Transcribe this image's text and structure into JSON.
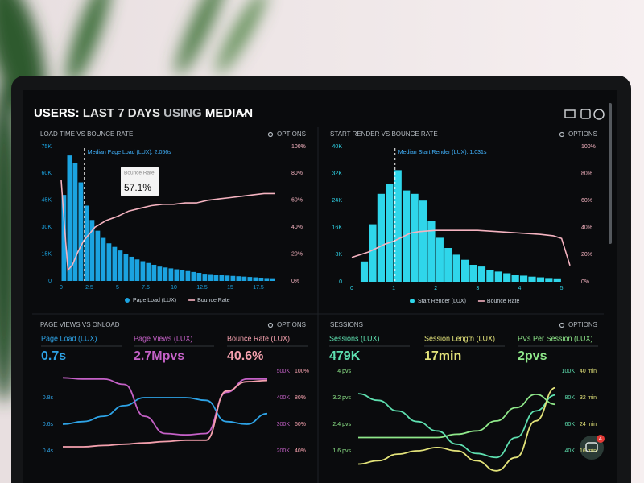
{
  "header": {
    "title": [
      "USERS:",
      "LAST 7 DAYS",
      "USING",
      "MEDIAN"
    ]
  },
  "panels": [
    {
      "title": "LOAD TIME VS BOUNCE RATE",
      "options": "OPTIONS",
      "annotation": {
        "value": 2.056,
        "label": "Median Page Load (LUX): 2.056s"
      },
      "tooltip": {
        "label": "Bounce Rate",
        "value": "57.1%"
      },
      "chart": {
        "type": "histogram_line",
        "xlim": [
          0,
          19.5
        ],
        "xticks": [
          0,
          2.5,
          5,
          7.5,
          10,
          12.5,
          15,
          17.5
        ],
        "ylim": [
          0,
          75000
        ],
        "yticks": [
          {
            "value": 0,
            "label": "0"
          },
          {
            "value": 15000,
            "label": "15K"
          },
          {
            "value": 30000,
            "label": "30K"
          },
          {
            "value": 45000,
            "label": "45K"
          },
          {
            "value": 60000,
            "label": "60K"
          },
          {
            "value": 75000,
            "label": "75K"
          }
        ],
        "y2lim": [
          0,
          100
        ],
        "y2ticks": [
          {
            "value": 0,
            "label": "0%"
          },
          {
            "value": 20,
            "label": "20%"
          },
          {
            "value": 40,
            "label": "40%"
          },
          {
            "value": 60,
            "label": "60%"
          },
          {
            "value": 80,
            "label": "80%"
          },
          {
            "value": 100,
            "label": "100%"
          }
        ],
        "bars": {
          "name": "Page Load (LUX)",
          "color": "#1ba3e0",
          "bins": [
            0,
            0.5,
            1,
            1.5,
            2,
            2.5,
            3,
            3.5,
            4,
            4.5,
            5,
            5.5,
            6,
            6.5,
            7,
            7.5,
            8,
            8.5,
            9,
            9.5,
            10,
            10.5,
            11,
            11.5,
            12,
            12.5,
            13,
            13.5,
            14,
            14.5,
            15,
            15.5,
            16,
            16.5,
            17,
            17.5,
            18,
            18.5,
            19
          ],
          "values": [
            48000,
            70000,
            66000,
            55000,
            42000,
            34000,
            28000,
            24000,
            21000,
            19000,
            17000,
            15000,
            13500,
            12000,
            11000,
            10000,
            9000,
            8000,
            7500,
            7000,
            6500,
            6000,
            5500,
            5000,
            4500,
            4000,
            3800,
            3500,
            3200,
            3000,
            2800,
            2600,
            2400,
            2200,
            2000,
            1800,
            1600,
            1500
          ]
        },
        "series": [
          {
            "name": "Bounce Rate",
            "color": "#f5b3c0",
            "axis": "y2",
            "x": [
              0,
              0.3,
              0.6,
              1,
              1.5,
              2,
              2.5,
              3,
              4,
              5,
              6,
              7,
              7.5,
              8,
              9,
              10,
              11,
              12,
              13,
              14,
              15,
              16,
              17,
              18,
              19
            ],
            "values": [
              75,
              40,
              8,
              12,
              22,
              30,
              35,
              40,
              45,
              48,
              52,
              54,
              55,
              56,
              57,
              57,
              58,
              58,
              60,
              61,
              62,
              63,
              64,
              65,
              65
            ]
          }
        ]
      }
    },
    {
      "title": "START RENDER VS BOUNCE RATE",
      "options": "OPTIONS",
      "annotation": {
        "value": 1.031,
        "label": "Median Start Render (LUX): 1.031s"
      },
      "chart": {
        "type": "histogram_line",
        "xlim": [
          0,
          5.2
        ],
        "xticks": [
          0,
          1,
          2,
          3,
          4,
          5
        ],
        "ylim": [
          0,
          40000
        ],
        "yticks": [
          {
            "value": 0,
            "label": "0"
          },
          {
            "value": 8000,
            "label": "8K"
          },
          {
            "value": 16000,
            "label": "16K"
          },
          {
            "value": 24000,
            "label": "24K"
          },
          {
            "value": 32000,
            "label": "32K"
          },
          {
            "value": 40000,
            "label": "40K"
          }
        ],
        "y2lim": [
          0,
          100
        ],
        "y2ticks": [
          {
            "value": 0,
            "label": "0%"
          },
          {
            "value": 20,
            "label": "20%"
          },
          {
            "value": 40,
            "label": "40%"
          },
          {
            "value": 60,
            "label": "60%"
          },
          {
            "value": 80,
            "label": "80%"
          },
          {
            "value": 100,
            "label": "100%"
          }
        ],
        "bars": {
          "name": "Start Render (LUX)",
          "color": "#2fd6ea",
          "bins": [
            0.2,
            0.4,
            0.6,
            0.8,
            1,
            1.2,
            1.4,
            1.6,
            1.8,
            2,
            2.2,
            2.4,
            2.6,
            2.8,
            3,
            3.2,
            3.4,
            3.6,
            3.8,
            4,
            4.2,
            4.4,
            4.6,
            4.8,
            5
          ],
          "values": [
            6000,
            17000,
            26000,
            29000,
            33000,
            27000,
            26000,
            24000,
            18000,
            13000,
            10000,
            8000,
            6500,
            5000,
            4500,
            3500,
            3000,
            2500,
            2000,
            1800,
            1500,
            1300,
            1100,
            1000
          ]
        },
        "series": [
          {
            "name": "Bounce Rate",
            "color": "#f5b3c0",
            "axis": "y2",
            "x": [
              0,
              0.2,
              0.4,
              0.6,
              0.8,
              1,
              1.2,
              1.4,
              1.6,
              2,
              2.5,
              3,
              3.5,
              4,
              4.5,
              4.8,
              5,
              5.2
            ],
            "values": [
              18,
              20,
              22,
              25,
              28,
              30,
              33,
              36,
              37,
              38,
              38,
              38,
              37,
              36,
              35,
              34,
              32,
              12
            ]
          }
        ]
      }
    },
    {
      "title": "PAGE VIEWS VS ONLOAD",
      "options": "OPTIONS",
      "metrics": [
        {
          "label": "Page Load (LUX)",
          "value": "0.7s",
          "color": "#2ea3e6"
        },
        {
          "label": "Page Views (LUX)",
          "value": "2.7Mpvs",
          "color": "#c561c7"
        },
        {
          "label": "Bounce Rate (LUX)",
          "value": "40.6%",
          "color": "#f4a0ad"
        }
      ],
      "chart": {
        "type": "multi_line",
        "categories": [
          null,
          null,
          null,
          null,
          null,
          null,
          null,
          null,
          null,
          null,
          null
        ],
        "ylim": [
          0.2,
          1.0
        ],
        "yticks": [
          {
            "value": 0.4,
            "label": "0.4s"
          },
          {
            "value": 0.6,
            "label": "0.6s"
          },
          {
            "value": 0.8,
            "label": "0.8s"
          }
        ],
        "y2lim": [
          100000,
          500000
        ],
        "y2ticks": [
          {
            "value": 200000,
            "label": "200K"
          },
          {
            "value": 300000,
            "label": "300K"
          },
          {
            "value": 400000,
            "label": "400K"
          },
          {
            "value": 500000,
            "label": "500K"
          }
        ],
        "y3lim": [
          20,
          100
        ],
        "y3ticks": [
          {
            "value": 40,
            "label": "40%"
          },
          {
            "value": 60,
            "label": "60%"
          },
          {
            "value": 80,
            "label": "80%"
          },
          {
            "value": 100,
            "label": "100%"
          }
        ],
        "series": [
          {
            "color": "#2ea3e6",
            "values": [
              0.6,
              0.62,
              0.66,
              0.74,
              0.8,
              0.8,
              0.8,
              0.78,
              0.62,
              0.6,
              0.68
            ]
          },
          {
            "color": "#c561c7",
            "axis": "y2",
            "values": [
              475000,
              470000,
              470000,
              450000,
              330000,
              265000,
              260000,
              265000,
              420000,
              470000,
              470000
            ]
          },
          {
            "color": "#f4a0ad",
            "axis": "y3",
            "values": [
              43,
              43,
              44,
              45,
              46,
              47,
              48,
              48,
              85,
              92,
              93
            ]
          }
        ]
      }
    },
    {
      "title": "SESSIONS",
      "options": "OPTIONS",
      "metrics": [
        {
          "label": "Sessions (LUX)",
          "value": "479K",
          "color": "#5ee0b0"
        },
        {
          "label": "Session Length (LUX)",
          "value": "17min",
          "color": "#e3e37a"
        },
        {
          "label": "PVs Per Session (LUX)",
          "value": "2pvs",
          "color": "#8fe88a"
        }
      ],
      "chart": {
        "type": "multi_line",
        "categories": [
          null,
          null,
          null,
          null,
          null,
          null,
          null,
          null,
          null,
          null,
          null
        ],
        "ylim": [
          0.8,
          4
        ],
        "yticks": [
          {
            "value": 1.6,
            "label": "1.6 pvs"
          },
          {
            "value": 2.4,
            "label": "2.4 pvs"
          },
          {
            "value": 3.2,
            "label": "3.2 pvs"
          },
          {
            "value": 4,
            "label": "4 pvs"
          }
        ],
        "y2lim": [
          20000,
          100000
        ],
        "y2ticks": [
          {
            "value": 40000,
            "label": "40K"
          },
          {
            "value": 60000,
            "label": "60K"
          },
          {
            "value": 80000,
            "label": "80K"
          },
          {
            "value": 100000,
            "label": "100K"
          }
        ],
        "y3lim": [
          8,
          40
        ],
        "y3ticks": [
          {
            "value": 16,
            "label": "16 min"
          },
          {
            "value": 24,
            "label": "24 min"
          },
          {
            "value": 32,
            "label": "32 min"
          },
          {
            "value": 40,
            "label": "40 min"
          }
        ],
        "series": [
          {
            "color": "#5ee0b0",
            "axis": "y2",
            "values": [
              83000,
              78000,
              70000,
              62000,
              55000,
              45000,
              38000,
              35000,
              50000,
              70000,
              82000
            ]
          },
          {
            "color": "#e3e37a",
            "axis": "y3",
            "values": [
              12,
              13,
              15,
              16,
              17,
              16,
              13,
              10,
              14,
              25,
              35
            ]
          },
          {
            "color": "#8fe88a",
            "values": [
              2,
              2,
              2,
              2,
              2,
              2.1,
              2.2,
              2.5,
              2.9,
              3.3,
              3.0
            ]
          }
        ]
      }
    }
  ],
  "chat": {
    "badge": 4
  }
}
